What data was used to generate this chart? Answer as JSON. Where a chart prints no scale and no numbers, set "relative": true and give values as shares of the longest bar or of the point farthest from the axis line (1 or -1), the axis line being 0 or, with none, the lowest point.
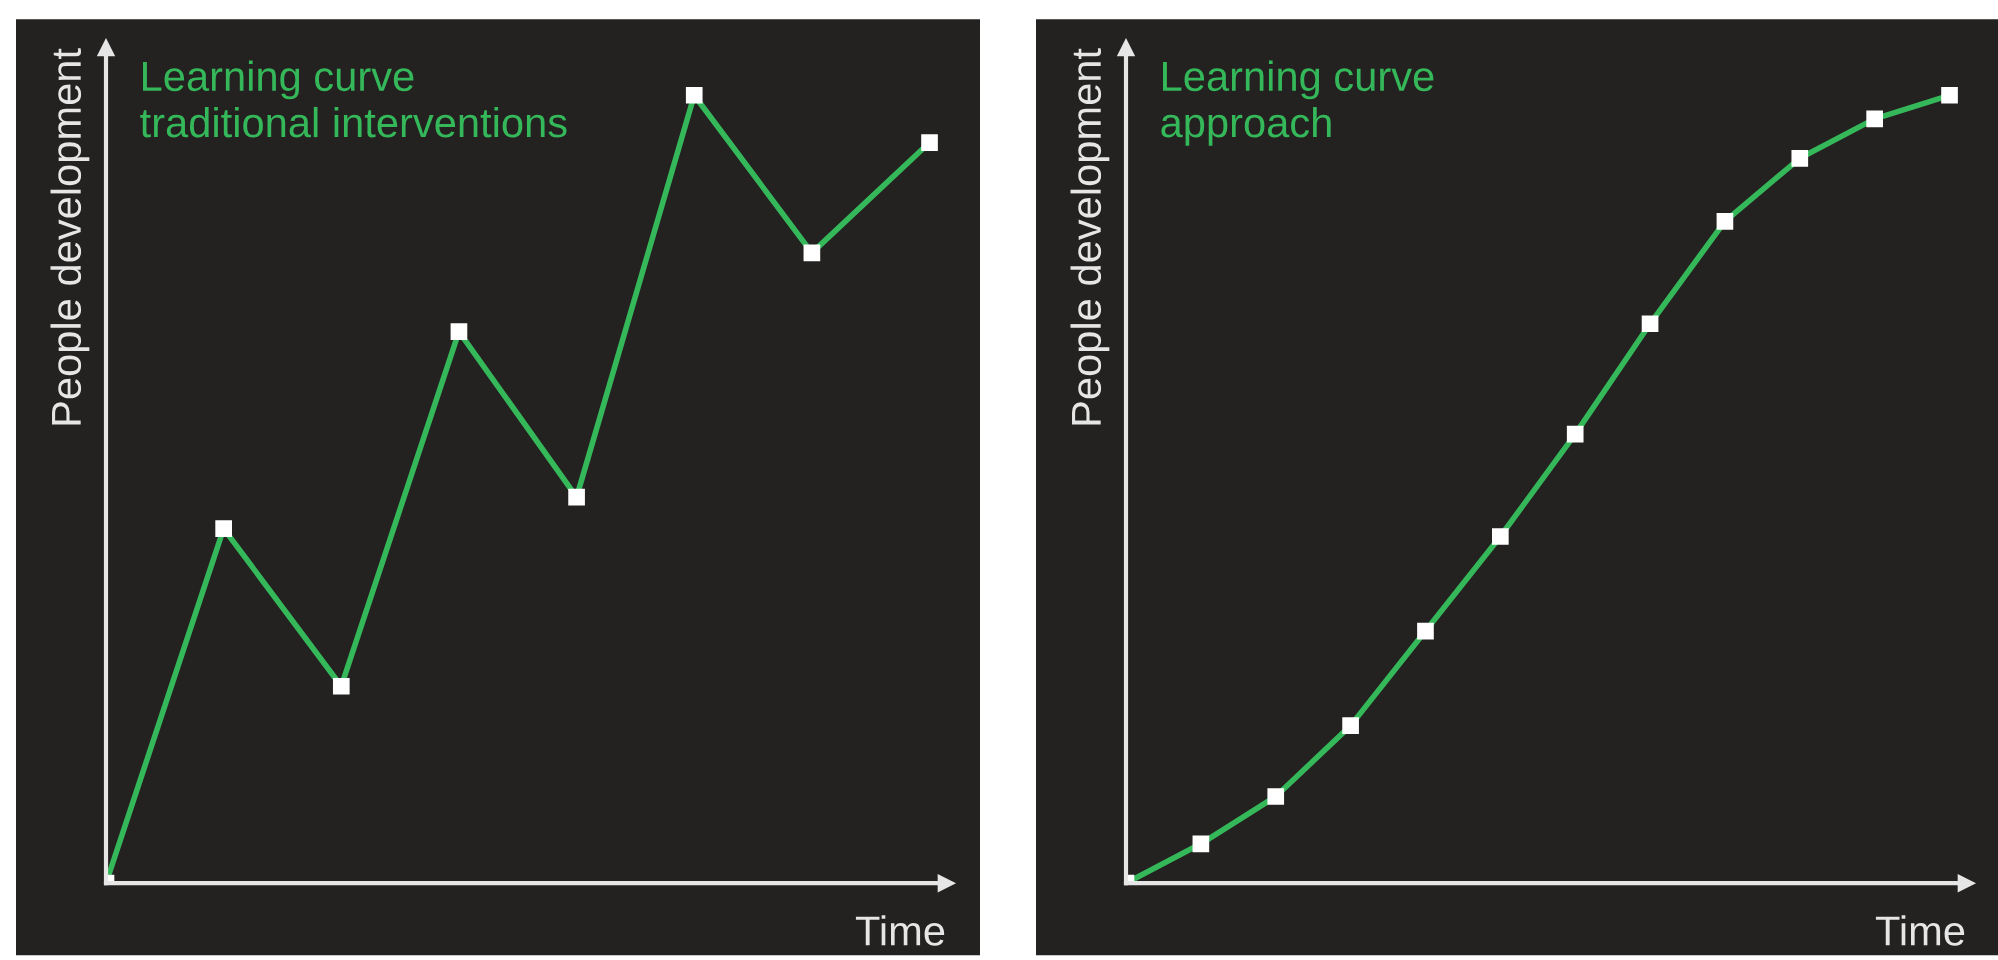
{
  "chart_data": [
    {
      "type": "line",
      "relative": true,
      "title": "Learning curve\ntraditional interventions",
      "xlabel": "Time",
      "ylabel": "People development",
      "marker": "square",
      "legend": false,
      "categories": [
        null,
        null,
        null,
        null,
        null,
        null,
        null,
        null
      ],
      "series": [
        {
          "color": "#35b85a",
          "values": [
            0,
            0.45,
            0.25,
            0.7,
            0.49,
            1.0,
            0.8,
            0.94
          ]
        }
      ]
    },
    {
      "type": "line",
      "relative": true,
      "title": "Learning curve\napproach",
      "xlabel": "Time",
      "ylabel": "People development",
      "marker": "square",
      "legend": false,
      "categories": [
        null,
        null,
        null,
        null,
        null,
        null,
        null,
        null,
        null,
        null,
        null,
        null
      ],
      "series": [
        {
          "color": "#35b85a",
          "values": [
            0,
            0.05,
            0.11,
            0.2,
            0.32,
            0.44,
            0.57,
            0.71,
            0.84,
            0.92,
            0.97,
            1.0
          ]
        }
      ]
    }
  ]
}
